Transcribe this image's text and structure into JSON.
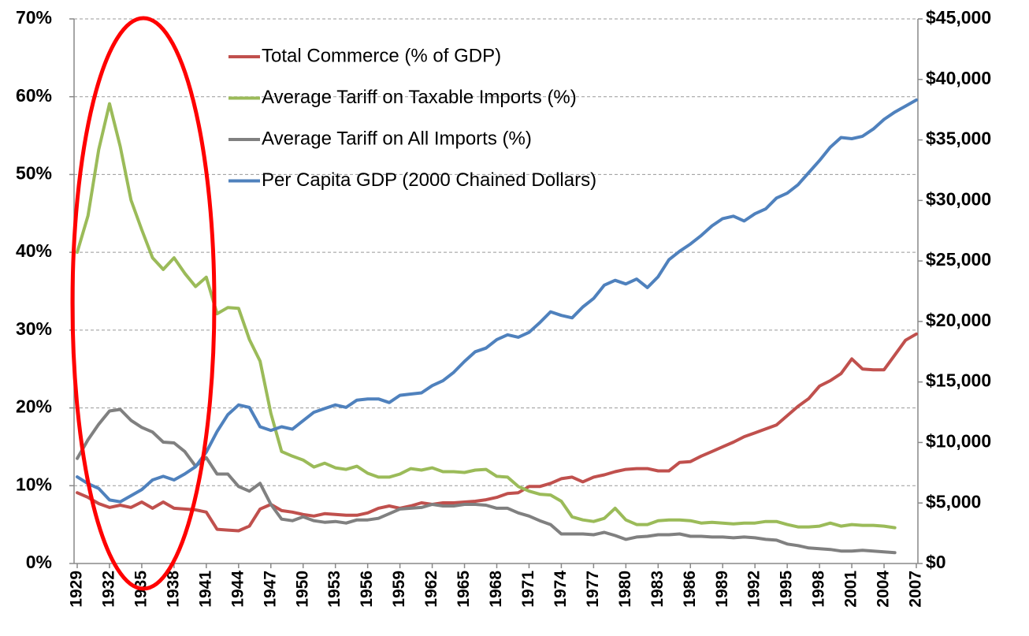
{
  "chart_data": {
    "type": "line",
    "x": [
      1929,
      1930,
      1931,
      1932,
      1933,
      1934,
      1935,
      1936,
      1937,
      1938,
      1939,
      1940,
      1941,
      1942,
      1943,
      1944,
      1945,
      1946,
      1947,
      1948,
      1949,
      1950,
      1951,
      1952,
      1953,
      1954,
      1955,
      1956,
      1957,
      1958,
      1959,
      1960,
      1961,
      1962,
      1963,
      1964,
      1965,
      1966,
      1967,
      1968,
      1969,
      1970,
      1971,
      1972,
      1973,
      1974,
      1975,
      1976,
      1977,
      1978,
      1979,
      1980,
      1981,
      1982,
      1983,
      1984,
      1985,
      1986,
      1987,
      1988,
      1989,
      1990,
      1991,
      1992,
      1993,
      1994,
      1995,
      1996,
      1997,
      1998,
      1999,
      2000,
      2001,
      2002,
      2003,
      2004,
      2005,
      2006,
      2007
    ],
    "xlim": [
      1929,
      2007
    ],
    "xticks": [
      1929,
      1932,
      1935,
      1938,
      1941,
      1944,
      1947,
      1950,
      1953,
      1956,
      1959,
      1962,
      1965,
      1968,
      1971,
      1974,
      1977,
      1980,
      1983,
      1986,
      1989,
      1992,
      1995,
      1998,
      2001,
      2004,
      2007
    ],
    "ylim": [
      0,
      70
    ],
    "yticks": [
      {
        "value": 0,
        "label": "0%"
      },
      {
        "value": 10,
        "label": "10%"
      },
      {
        "value": 20,
        "label": "20%"
      },
      {
        "value": 30,
        "label": "30%"
      },
      {
        "value": 40,
        "label": "40%"
      },
      {
        "value": 50,
        "label": "50%"
      },
      {
        "value": 60,
        "label": "60%"
      },
      {
        "value": 70,
        "label": "70%"
      }
    ],
    "y2lim": [
      0,
      45000
    ],
    "y2ticks": [
      {
        "value": 0,
        "label": "$0"
      },
      {
        "value": 5000,
        "label": "$5,000"
      },
      {
        "value": 10000,
        "label": "$10,000"
      },
      {
        "value": 15000,
        "label": "$15,000"
      },
      {
        "value": 20000,
        "label": "$20,000"
      },
      {
        "value": 25000,
        "label": "$25,000"
      },
      {
        "value": 30000,
        "label": "$30,000"
      },
      {
        "value": 35000,
        "label": "$35,000"
      },
      {
        "value": 40000,
        "label": "$40,000"
      },
      {
        "value": 45000,
        "label": "$45,000"
      }
    ],
    "grid": true,
    "legend": "upper-left",
    "series": [
      {
        "name": "Total Commerce (% of GDP)",
        "color": "#c0504d",
        "values": [
          9.1,
          8.5,
          7.7,
          7.2,
          7.5,
          7.2,
          7.9,
          7.1,
          7.9,
          7.1,
          7.0,
          6.9,
          6.6,
          4.4,
          4.3,
          4.2,
          4.8,
          7.0,
          7.6,
          6.8,
          6.6,
          6.3,
          6.1,
          6.4,
          6.3,
          6.2,
          6.2,
          6.5,
          7.1,
          7.4,
          7.1,
          7.4,
          7.8,
          7.6,
          7.8,
          7.8,
          7.9,
          8.0,
          8.2,
          8.5,
          9.0,
          9.1,
          9.9,
          9.9,
          10.3,
          10.9,
          11.1,
          10.5,
          11.1,
          11.4,
          11.8,
          12.1,
          12.2,
          12.2,
          11.9,
          11.9,
          13.0,
          13.1,
          13.8,
          14.4,
          15.0,
          15.6,
          16.3,
          16.8,
          17.3,
          17.8,
          19.0,
          20.2,
          21.2,
          22.8,
          23.5,
          24.4,
          26.3,
          25.0,
          24.9,
          24.9,
          26.8,
          28.7,
          29.5
        ]
      },
      {
        "name": "Average Tariff on Taxable Imports (%)",
        "color": "#9bbb59",
        "values": [
          40,
          44.7,
          53.2,
          59.1,
          53.6,
          46.7,
          42.9,
          39.3,
          37.8,
          39.3,
          37.3,
          35.6,
          36.8,
          32.1,
          32.9,
          32.8,
          28.8,
          26.0,
          19.3,
          14.4,
          13.8,
          13.3,
          12.4,
          12.9,
          12.3,
          12.1,
          12.5,
          11.6,
          11.1,
          11.1,
          11.5,
          12.2,
          12.0,
          12.3,
          11.8,
          11.8,
          11.7,
          12.0,
          12.1,
          11.2,
          11.1,
          9.9,
          9.3,
          8.9,
          8.8,
          8.0,
          6.0,
          5.6,
          5.4,
          5.8,
          7.1,
          5.6,
          5.0,
          5.0,
          5.5,
          5.6,
          5.6,
          5.5,
          5.2,
          5.3,
          5.2,
          5.1,
          5.2,
          5.2,
          5.4,
          5.4,
          5.0,
          4.7,
          4.7,
          4.8,
          5.2,
          4.8,
          5.0,
          4.9,
          4.9,
          4.8,
          4.6,
          null,
          null
        ]
      },
      {
        "name": "Average Tariff on All Imports (%)",
        "color": "#808080",
        "values": [
          13.5,
          15.9,
          17.9,
          19.6,
          19.8,
          18.4,
          17.5,
          16.9,
          15.6,
          15.5,
          14.4,
          12.5,
          13.6,
          11.5,
          11.5,
          9.9,
          9.3,
          10.3,
          7.6,
          5.7,
          5.5,
          6.0,
          5.5,
          5.3,
          5.4,
          5.2,
          5.6,
          5.6,
          5.8,
          6.4,
          7.0,
          7.1,
          7.2,
          7.6,
          7.4,
          7.4,
          7.6,
          7.6,
          7.5,
          7.1,
          7.1,
          6.5,
          6.1,
          5.5,
          5.0,
          3.8,
          3.8,
          3.8,
          3.7,
          4.0,
          3.6,
          3.1,
          3.4,
          3.5,
          3.7,
          3.7,
          3.8,
          3.5,
          3.5,
          3.4,
          3.4,
          3.3,
          3.4,
          3.3,
          3.1,
          3.0,
          2.5,
          2.3,
          2.0,
          1.9,
          1.8,
          1.6,
          1.6,
          1.7,
          1.6,
          1.5,
          1.4,
          null,
          null
        ]
      },
      {
        "name": "Per Capita GDP (2000 Chained Dollars)",
        "color": "#4f81bd",
        "axis": "y2",
        "values": [
          7160,
          6600,
          6200,
          5250,
          5100,
          5600,
          6100,
          6900,
          7200,
          6900,
          7400,
          8000,
          9200,
          10900,
          12300,
          13100,
          12900,
          11300,
          11000,
          11300,
          11100,
          11800,
          12500,
          12800,
          13100,
          12900,
          13500,
          13600,
          13600,
          13300,
          13900,
          14000,
          14100,
          14700,
          15100,
          15800,
          16700,
          17500,
          17800,
          18500,
          18900,
          18700,
          19100,
          19900,
          20800,
          20500,
          20300,
          21200,
          21900,
          23000,
          23400,
          23100,
          23500,
          22800,
          23700,
          25100,
          25800,
          26400,
          27100,
          27900,
          28500,
          28700,
          28300,
          28900,
          29300,
          30200,
          30600,
          31300,
          32300,
          33300,
          34400,
          35200,
          35100,
          35300,
          35900,
          36700,
          37300,
          37800,
          38300
        ]
      }
    ]
  }
}
